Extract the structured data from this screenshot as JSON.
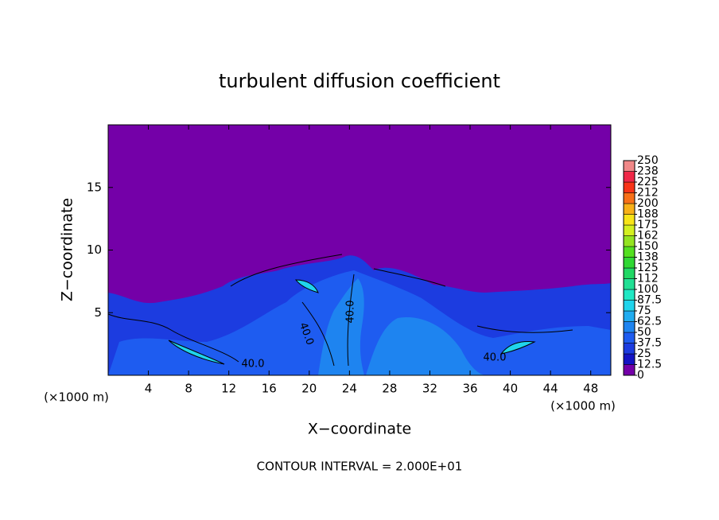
{
  "chart_data": {
    "type": "contour",
    "title": "turbulent diffusion coefficient",
    "x_label": "X−coordinate",
    "y_label": "Z−coordinate",
    "x_unit_left": "(×1000 m)",
    "x_unit_right": "(×1000 m)",
    "footer": "CONTOUR INTERVAL = 2.000E+01",
    "contour_labels": [
      "40.0",
      "40.0",
      "40.0",
      "40.0"
    ],
    "xlim": [
      0,
      50
    ],
    "ylim": [
      0,
      20
    ],
    "xticks": [
      4,
      8,
      12,
      16,
      20,
      24,
      28,
      32,
      36,
      40,
      44,
      48
    ],
    "yticks": [
      5,
      10,
      15
    ],
    "colorbar": {
      "ticks": [
        0,
        12.5,
        25,
        37.5,
        50,
        62.5,
        75,
        87.5,
        100,
        {
          "value": 112.5,
          "label": "112"
        },
        125,
        {
          "value": 137.5,
          "label": "138"
        },
        150,
        {
          "value": 162.5,
          "label": "162"
        },
        175,
        {
          "value": 187.5,
          "label": "188"
        },
        200,
        {
          "value": 212.5,
          "label": "212"
        },
        225,
        {
          "value": 237.5,
          "label": "238"
        },
        250
      ],
      "colors": [
        "#7400a8",
        "#1414c4",
        "#1c3ce0",
        "#1e5cf0",
        "#1e84f0",
        "#20acf0",
        "#20d4ec",
        "#20e8c4",
        "#20e094",
        "#20d864",
        "#30d834",
        "#54e020",
        "#94e420",
        "#d4f020",
        "#f8e418",
        "#f8b018",
        "#f87018",
        "#f83418",
        "#f02848",
        "#f08888"
      ]
    }
  }
}
